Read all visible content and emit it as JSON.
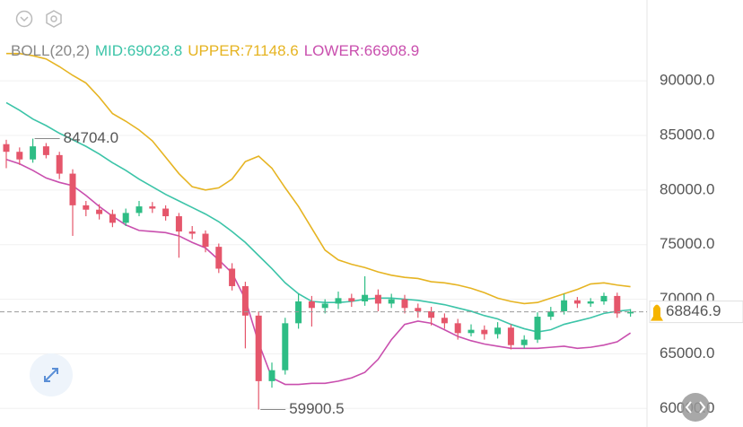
{
  "chart_data": {
    "type": "candlestick",
    "indicator": "BOLL(20,2)",
    "ylim": [
      58300,
      97400
    ],
    "yticks": [
      {
        "value": 60000,
        "label": "60000.0"
      },
      {
        "value": 65000,
        "label": "65000.0"
      },
      {
        "value": 70000,
        "label": "70000.0"
      },
      {
        "value": 75000,
        "label": "75000.0"
      },
      {
        "value": 80000,
        "label": "80000.0"
      },
      {
        "value": 85000,
        "label": "85000.0"
      },
      {
        "value": 90000,
        "label": "90000.0"
      }
    ],
    "up_color": "#2ebd85",
    "down_color": "#e5566b",
    "open": [
      84200,
      83500,
      82800,
      84000,
      83200,
      81500,
      78600,
      78200,
      77800,
      77000,
      77900,
      78500,
      78300,
      77600,
      76200,
      76000,
      74800,
      72800,
      71200,
      68500,
      62500,
      63500,
      67800,
      69800,
      69200,
      69600,
      70100,
      69800,
      70400,
      69600,
      70000,
      69200,
      68900,
      68300,
      67800,
      66900,
      67200,
      66800,
      67400,
      65800,
      66300,
      68400,
      68900,
      69900,
      69600,
      69800,
      70300,
      68700
    ],
    "high": [
      84600,
      83900,
      84704,
      84300,
      83500,
      81900,
      79000,
      78700,
      78200,
      78300,
      79000,
      78900,
      78600,
      77900,
      76700,
      76300,
      75100,
      73300,
      71600,
      68900,
      64200,
      68300,
      70500,
      70300,
      70000,
      70700,
      70500,
      72100,
      70900,
      70500,
      70400,
      69600,
      69300,
      68700,
      68200,
      67700,
      67600,
      67900,
      67700,
      66700,
      68800,
      69300,
      70500,
      70200,
      70100,
      70600,
      70600,
      69100
    ],
    "low": [
      82000,
      82300,
      82500,
      82900,
      81000,
      75800,
      77600,
      77300,
      76600,
      76700,
      77600,
      77900,
      77200,
      73800,
      75500,
      74300,
      72400,
      70800,
      65500,
      59900.5,
      61900,
      63100,
      67300,
      67500,
      68700,
      69100,
      69300,
      69400,
      68900,
      69200,
      68700,
      68300,
      67600,
      67300,
      66300,
      66600,
      66300,
      66400,
      65400,
      65500,
      66000,
      68100,
      68600,
      69200,
      69300,
      69500,
      68300,
      68400
    ],
    "close": [
      83500,
      82800,
      84000,
      83200,
      81500,
      78600,
      78200,
      77800,
      77000,
      77900,
      78500,
      78300,
      77600,
      76200,
      76000,
      74800,
      72800,
      71200,
      68500,
      62500,
      63500,
      67800,
      69800,
      69200,
      69600,
      70100,
      69800,
      70400,
      69600,
      70000,
      69200,
      68900,
      68300,
      67800,
      66900,
      67200,
      66800,
      67400,
      65800,
      66300,
      68400,
      68900,
      69900,
      69600,
      69800,
      70300,
      68700,
      68846.9
    ],
    "series": [
      {
        "name": "MID:69028.8",
        "color": "#3cc4a8",
        "values": [
          88000,
          87300,
          86500,
          85900,
          85200,
          84600,
          84000,
          83300,
          82500,
          81800,
          81000,
          80300,
          79600,
          79000,
          78400,
          77800,
          77100,
          76200,
          75200,
          74000,
          72800,
          71500,
          70500,
          69800,
          69700,
          69700,
          69800,
          70000,
          70100,
          70100,
          70000,
          69900,
          69700,
          69500,
          69200,
          68900,
          68500,
          68200,
          67700,
          67300,
          67000,
          67200,
          67700,
          68000,
          68300,
          68700,
          68900,
          69028.8
        ]
      },
      {
        "name": "UPPER:71148.6",
        "color": "#e6b422",
        "values": [
          92500,
          92500,
          92300,
          92000,
          91300,
          90500,
          89800,
          88500,
          87000,
          86300,
          85500,
          84500,
          83000,
          81500,
          80300,
          80000,
          80200,
          81000,
          82600,
          83100,
          82000,
          80200,
          78500,
          76500,
          74500,
          73600,
          73200,
          72900,
          72500,
          72200,
          72000,
          71900,
          71600,
          71500,
          71300,
          71000,
          70600,
          70100,
          69800,
          69600,
          69700,
          70100,
          70500,
          70900,
          71400,
          71500,
          71300,
          71148.6
        ]
      },
      {
        "name": "LOWER:66908.9",
        "color": "#c94fae",
        "values": [
          82800,
          82400,
          81800,
          81100,
          80700,
          80400,
          79500,
          78500,
          77600,
          76800,
          76300,
          76200,
          76100,
          75800,
          75200,
          74700,
          73600,
          72400,
          70000,
          66000,
          62800,
          62200,
          62200,
          62300,
          62300,
          62500,
          62800,
          63300,
          64500,
          66300,
          67700,
          68000,
          67800,
          67200,
          66600,
          66200,
          65900,
          65700,
          65500,
          65500,
          65500,
          65600,
          65700,
          65500,
          65600,
          65800,
          66100,
          66908.9
        ]
      }
    ],
    "annotations": [
      {
        "value": 84704,
        "label": "84704.0",
        "index": 2
      },
      {
        "value": 59900.5,
        "label": "59900.5",
        "index": 19
      }
    ],
    "current_price": {
      "value": 68846.9,
      "label": "68846.9"
    }
  }
}
